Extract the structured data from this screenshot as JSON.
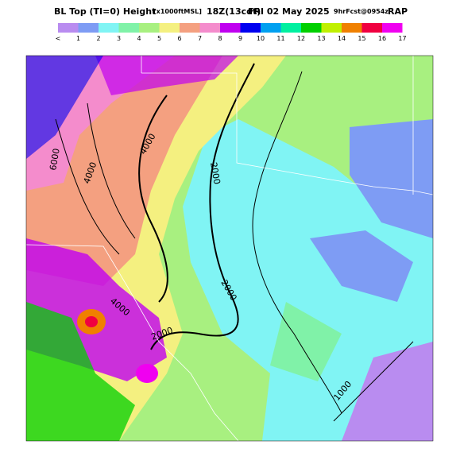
{
  "header": {
    "title": "BL Top (TI=0) Height",
    "units": "[x1000ftMSL]",
    "valid": "18Z(13cdt)",
    "date": "FRI 02 May 2025",
    "forecast": "9hrFcst@0954z",
    "model": "RAP"
  },
  "legend": {
    "labels": [
      "<",
      "1",
      "2",
      "3",
      "4",
      "5",
      "6",
      "7",
      "8",
      "9",
      "10",
      "11",
      "12",
      "13",
      "14",
      "15",
      "16",
      "17"
    ],
    "colors": [
      "#b98cf0",
      "#7e9cf4",
      "#80f4f4",
      "#80f2a8",
      "#a8f080",
      "#f4f080",
      "#f4a080",
      "#f48ccc",
      "#c000f0",
      "#0000f0",
      "#00a0f0",
      "#00f0a0",
      "#00d000",
      "#c0f000",
      "#f08000",
      "#f00040",
      "#f000f0"
    ]
  },
  "contours": {
    "labels": [
      "6000",
      "4000",
      "4000",
      "2000",
      "2000",
      "4000",
      "2000",
      "1000"
    ]
  }
}
